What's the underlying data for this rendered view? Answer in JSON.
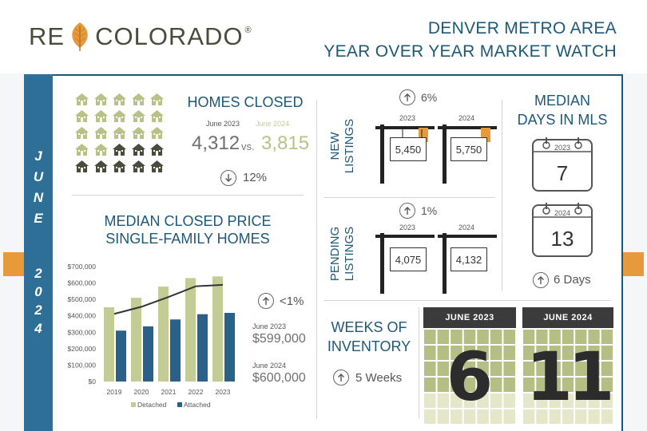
{
  "header": {
    "logo_left": "RE",
    "logo_right": "COLORADO",
    "logo_reg": "®",
    "title_line1": "DENVER METRO AREA",
    "title_line2": "YEAR OVER YEAR MARKET WATCH"
  },
  "ribbon": {
    "letters": [
      "J",
      "U",
      "N",
      "E",
      "2",
      "0",
      "2",
      "4"
    ]
  },
  "homes_closed": {
    "title": "HOMES CLOSED",
    "label_2023": "June 2023",
    "label_2024": "June 2024",
    "value_2023": "4,312",
    "vs": "vs.",
    "value_2024": "3,815",
    "change": "12%",
    "change_direction": "down",
    "houses_total": 25,
    "houses_dark": 8
  },
  "median_price": {
    "title_line1": "MEDIAN CLOSED PRICE",
    "title_line2": "SINGLE-FAMILY HOMES",
    "change": "<1%",
    "change_direction": "up",
    "label_2023": "June 2023",
    "value_2023": "$599,000",
    "label_2024": "June 2024",
    "value_2024": "$600,000"
  },
  "chart_data": {
    "type": "bar",
    "categories": [
      "2019",
      "2020",
      "2021",
      "2022",
      "2023"
    ],
    "series": [
      {
        "name": "Detached",
        "values": [
          452000,
          510000,
          578000,
          630000,
          640000
        ],
        "color": "#c3cc94"
      },
      {
        "name": "Attached",
        "values": [
          310000,
          336000,
          378000,
          410000,
          418000
        ],
        "color": "#2a6189"
      }
    ],
    "trend_line": [
      412000,
      455000,
      515000,
      580000,
      589000
    ],
    "ylim": [
      0,
      700000
    ],
    "y_ticks": [
      {
        "value": 0,
        "label": "$0"
      },
      {
        "value": 100000,
        "label": "$100,000"
      },
      {
        "value": 200000,
        "label": "$200,000"
      },
      {
        "value": 300000,
        "label": "$300,000"
      },
      {
        "value": 400000,
        "label": "$400,000"
      },
      {
        "value": 500000,
        "label": "$500,000"
      },
      {
        "value": 600000,
        "label": "$600,000"
      },
      {
        "value": 700000,
        "label": "$700,000"
      }
    ],
    "legend_position": "bottom",
    "grid": false
  },
  "new_listings": {
    "label_line1": "NEW",
    "label_line2": "LISTINGS",
    "change": "6%",
    "change_direction": "up",
    "year_2023": "2023",
    "year_2024": "2024",
    "value_2023": "5,450",
    "value_2024": "5,750"
  },
  "pending_listings": {
    "label_line1": "PENDING",
    "label_line2": "LISTINGS",
    "change": "1%",
    "change_direction": "up",
    "year_2023": "2023",
    "year_2024": "2024",
    "value_2023": "4,075",
    "value_2024": "4,132"
  },
  "days_in_mls": {
    "title_line1": "MEDIAN",
    "title_line2": "DAYS IN MLS",
    "year_2023": "2023",
    "value_2023": "7",
    "year_2024": "2024",
    "value_2024": "13",
    "change": "6 Days",
    "change_direction": "up"
  },
  "weeks_inventory": {
    "title_line1": "WEEKS OF",
    "title_line2": "INVENTORY",
    "change": "5 Weeks",
    "change_direction": "up",
    "header_2023": "JUNE 2023",
    "value_2023": "6",
    "header_2024": "JUNE 2024",
    "value_2024": "11"
  }
}
